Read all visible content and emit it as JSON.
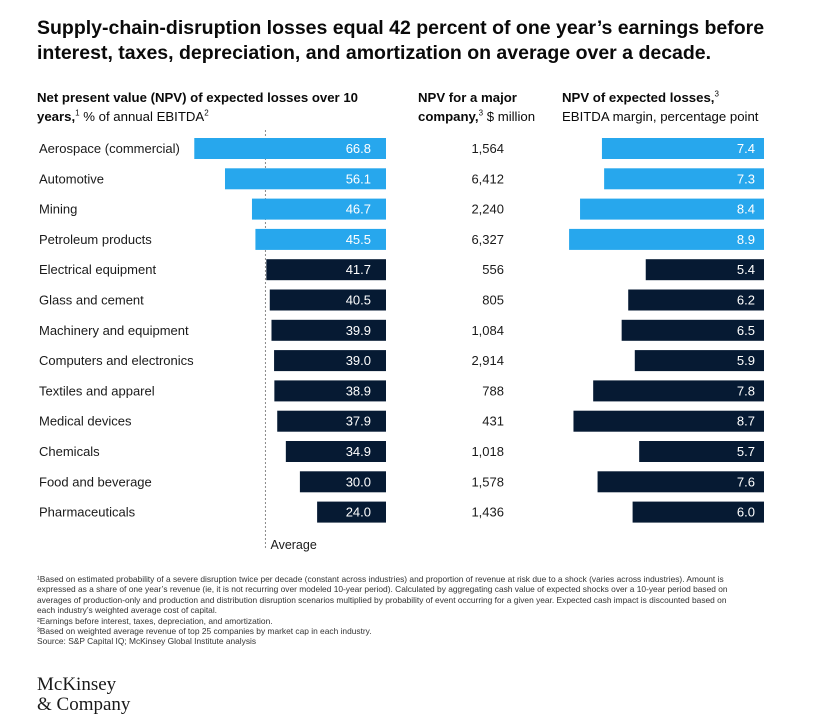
{
  "title": "Supply-chain-disruption losses equal 42 percent of one year’s earnings before interest, taxes, depreciation, and amortization on average over a decade.",
  "headers": {
    "col1_bold": "Net present value (NPV) of expected losses over 10 years,",
    "col1_sup": "1",
    "col1_rest": " % of annual EBITDA",
    "col1_sup2": "2",
    "col2_bold": "NPV for a major company,",
    "col2_sup": "3",
    "col2_rest": " $ million",
    "col3_bold": "NPV of expected losses,",
    "col3_sup": "3",
    "col3_rest": "EBITDA margin, percentage point"
  },
  "average_label": "Average",
  "colors": {
    "highlight": "#27a7ed",
    "dark": "#061a33",
    "text_on_bar": "#ffffff"
  },
  "chart_data": {
    "type": "bar",
    "orientation": "horizontal",
    "categories": [
      "Aerospace (commercial)",
      "Automotive",
      "Mining",
      "Petroleum products",
      "Electrical equipment",
      "Glass and cement",
      "Machinery and equipment",
      "Computers and electronics",
      "Textiles and apparel",
      "Medical devices",
      "Chemicals",
      "Food and beverage",
      "Pharmaceuticals"
    ],
    "npv_pct_ebitda": [
      66.8,
      56.1,
      46.7,
      45.5,
      41.7,
      40.5,
      39.9,
      39.0,
      38.9,
      37.9,
      34.9,
      30.0,
      24.0
    ],
    "npv_pct_ebitda_labels": [
      "66.8",
      "56.1",
      "46.7",
      "45.5",
      "41.7",
      "40.5",
      "39.9",
      "39.0",
      "38.9",
      "37.9",
      "34.9",
      "30.0",
      "24.0"
    ],
    "npv_major_company_musd": [
      "1,564",
      "6,412",
      "2,240",
      "6,327",
      "556",
      "805",
      "1,084",
      "2,914",
      "788",
      "431",
      "1,018",
      "1,578",
      "1,436"
    ],
    "ebitda_margin_pp": [
      7.4,
      7.3,
      8.4,
      8.9,
      5.4,
      6.2,
      6.5,
      5.9,
      7.8,
      8.7,
      5.7,
      7.6,
      6.0
    ],
    "ebitda_margin_labels": [
      "7.4",
      "7.3",
      "8.4",
      "8.9",
      "5.4",
      "6.2",
      "6.5",
      "5.9",
      "7.8",
      "8.7",
      "5.7",
      "7.6",
      "6.0"
    ],
    "highlighted": [
      true,
      true,
      true,
      true,
      false,
      false,
      false,
      false,
      false,
      false,
      false,
      false,
      false
    ],
    "average_value": 42
  },
  "footnotes": [
    "¹Based on estimated probability of a severe disruption twice per decade (constant across industries) and proportion of revenue at risk due to a shock (varies across industries). Amount is expressed as a share of one year’s revenue (ie, it is not recurring over modeled 10-year period). Calculated by aggregating cash value of expected shocks over a 10-year period based on averages of production-only and production and distribution disruption scenarios multiplied by probability of event occurring for a given year. Expected cash impact is discounted based on each industry’s weighted average cost of capital.",
    "²Earnings before interest, taxes, depreciation, and amortization.",
    "³Based on weighted average revenue of top 25 companies by market cap in each industry.",
    "Source: S&P Capital IQ; McKinsey Global Institute analysis"
  ],
  "logo": {
    "line1": "McKinsey",
    "line2": "& Company"
  }
}
